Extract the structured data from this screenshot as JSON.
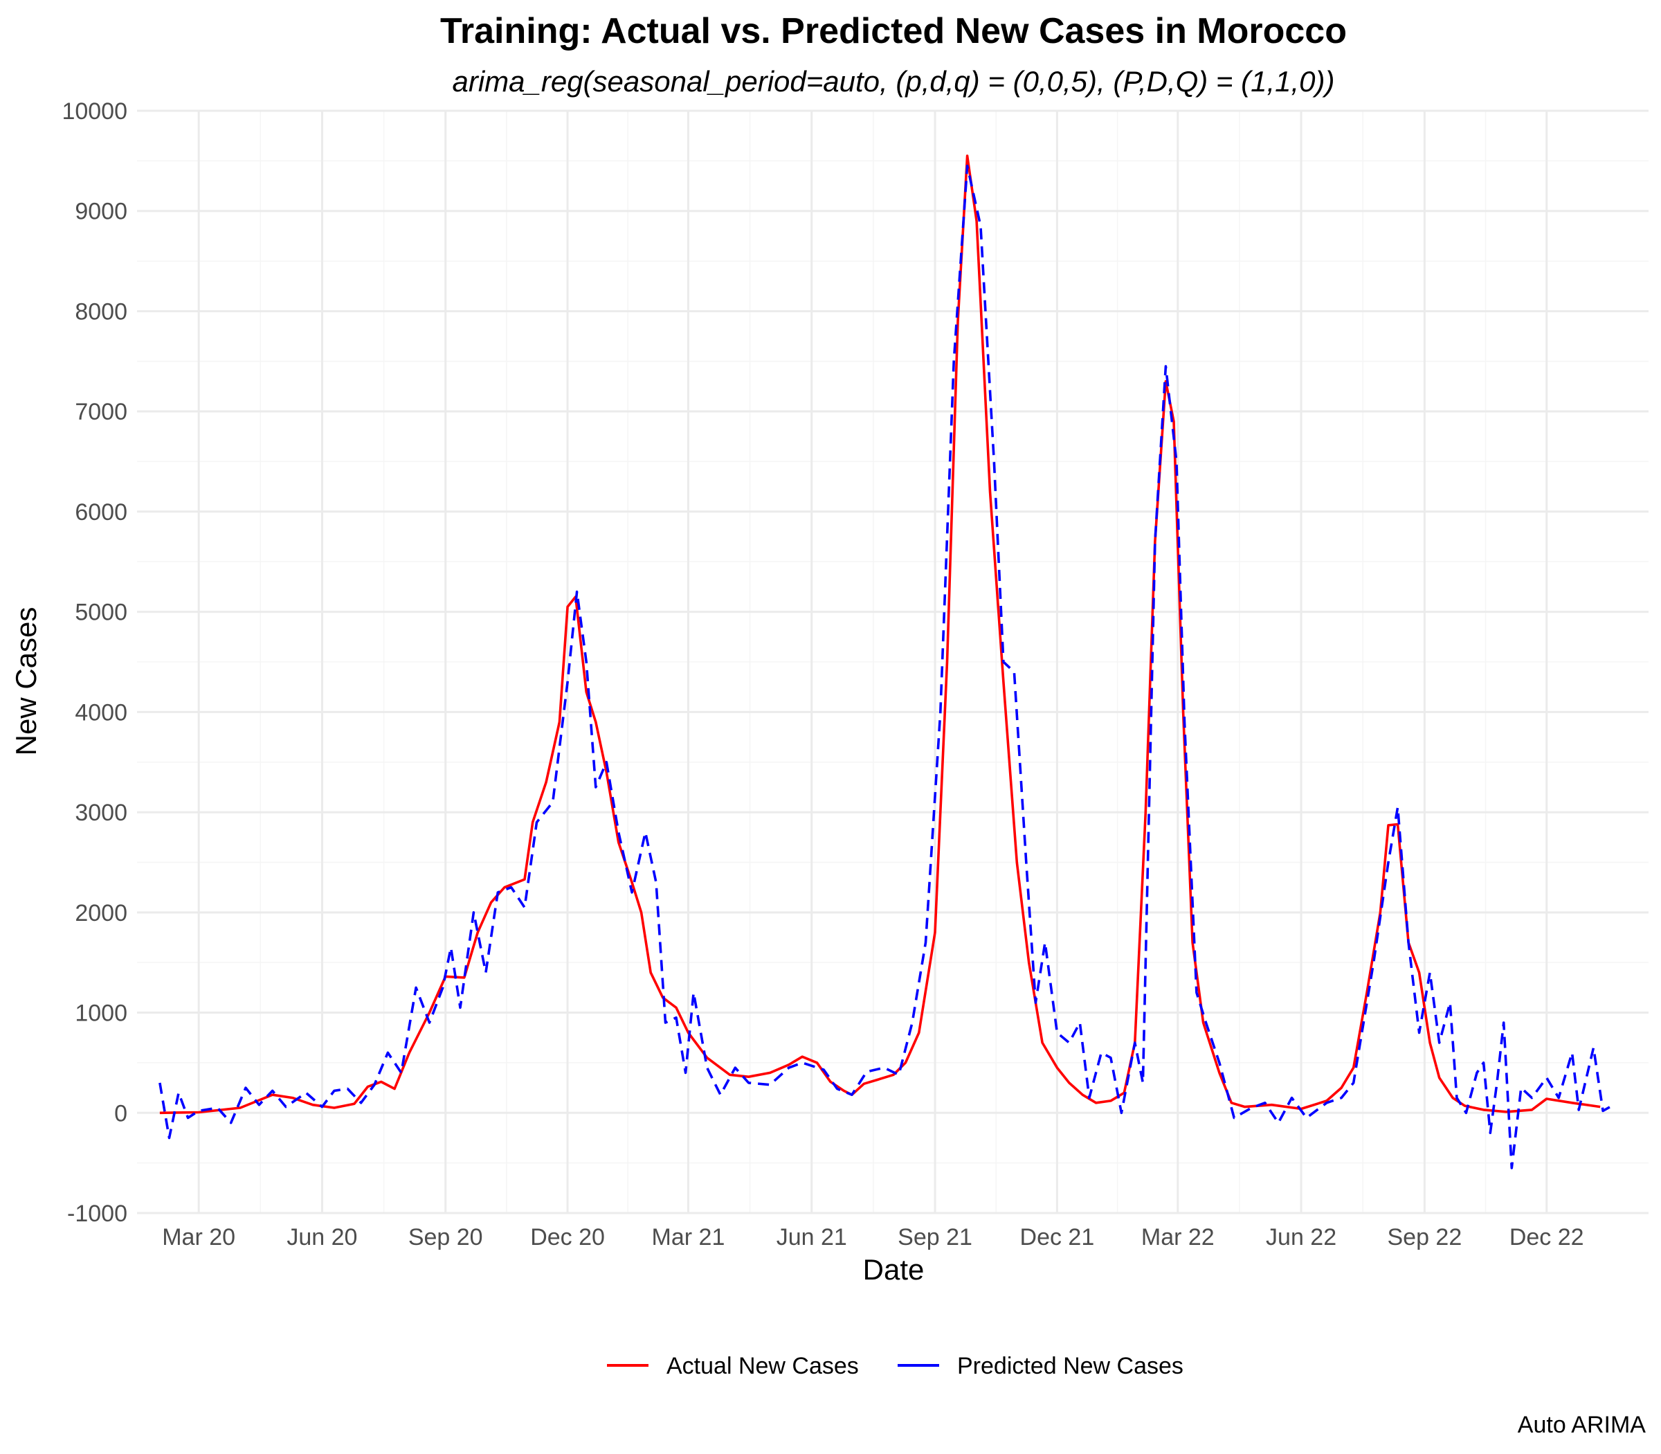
{
  "chart_data": {
    "type": "line",
    "title": "Training: Actual vs. Predicted New Cases in Morocco",
    "subtitle": "arima_reg(seasonal_period=auto, (p,d,q) = (0,0,5), (P,D,Q) = (1,1,0))",
    "xlabel": "Date",
    "ylabel": "New Cases",
    "caption": "Auto ARIMA",
    "x_axis": "date",
    "xlim": [
      "2020-01-15",
      "2023-02-15"
    ],
    "ylim": [
      -1000,
      10000
    ],
    "y_ticks": [
      -1000,
      0,
      1000,
      2000,
      3000,
      4000,
      5000,
      6000,
      7000,
      8000,
      9000,
      10000
    ],
    "y_tick_labels": [
      "-1000",
      "0",
      "1000",
      "2000",
      "3000",
      "4000",
      "5000",
      "6000",
      "7000",
      "8000",
      "9000",
      "10000"
    ],
    "x_ticks": [
      "2020-03-01",
      "2020-06-01",
      "2020-09-01",
      "2020-12-01",
      "2021-03-01",
      "2021-06-01",
      "2021-09-01",
      "2021-12-01",
      "2022-03-01",
      "2022-06-01",
      "2022-09-01",
      "2022-12-01"
    ],
    "x_tick_labels": [
      "Mar 20",
      "Jun 20",
      "Sep 20",
      "Dec 20",
      "Mar 21",
      "Jun 21",
      "Sep 21",
      "Dec 21",
      "Mar 22",
      "Jun 22",
      "Sep 22",
      "Dec 22"
    ],
    "grid": true,
    "legend_position": "bottom",
    "colors": {
      "actual": "#ff0000",
      "predicted": "#0000ff"
    },
    "series": [
      {
        "name": "Actual New Cases",
        "style": "solid",
        "points": [
          [
            "2020-02-01",
            0
          ],
          [
            "2020-03-01",
            5
          ],
          [
            "2020-04-01",
            50
          ],
          [
            "2020-04-25",
            180
          ],
          [
            "2020-05-10",
            150
          ],
          [
            "2020-05-25",
            80
          ],
          [
            "2020-06-10",
            50
          ],
          [
            "2020-06-25",
            90
          ],
          [
            "2020-07-05",
            260
          ],
          [
            "2020-07-15",
            310
          ],
          [
            "2020-07-25",
            240
          ],
          [
            "2020-08-05",
            600
          ],
          [
            "2020-08-20",
            1000
          ],
          [
            "2020-09-01",
            1360
          ],
          [
            "2020-09-15",
            1350
          ],
          [
            "2020-09-25",
            1800
          ],
          [
            "2020-10-05",
            2100
          ],
          [
            "2020-10-15",
            2250
          ],
          [
            "2020-10-30",
            2330
          ],
          [
            "2020-11-05",
            2900
          ],
          [
            "2020-11-15",
            3300
          ],
          [
            "2020-11-25",
            3900
          ],
          [
            "2020-12-01",
            5050
          ],
          [
            "2020-12-07",
            5150
          ],
          [
            "2020-12-15",
            4200
          ],
          [
            "2020-12-22",
            3900
          ],
          [
            "2020-12-30",
            3400
          ],
          [
            "2021-01-08",
            2700
          ],
          [
            "2021-01-18",
            2300
          ],
          [
            "2021-01-25",
            2000
          ],
          [
            "2021-02-01",
            1400
          ],
          [
            "2021-02-10",
            1150
          ],
          [
            "2021-02-20",
            1050
          ],
          [
            "2021-03-01",
            800
          ],
          [
            "2021-03-15",
            550
          ],
          [
            "2021-04-01",
            380
          ],
          [
            "2021-04-15",
            360
          ],
          [
            "2021-05-01",
            400
          ],
          [
            "2021-05-15",
            480
          ],
          [
            "2021-05-25",
            560
          ],
          [
            "2021-06-05",
            500
          ],
          [
            "2021-06-15",
            310
          ],
          [
            "2021-06-25",
            220
          ],
          [
            "2021-07-01",
            180
          ],
          [
            "2021-07-10",
            290
          ],
          [
            "2021-07-20",
            330
          ],
          [
            "2021-08-01",
            380
          ],
          [
            "2021-08-10",
            500
          ],
          [
            "2021-08-20",
            800
          ],
          [
            "2021-09-01",
            1800
          ],
          [
            "2021-09-10",
            4500
          ],
          [
            "2021-09-18",
            7900
          ],
          [
            "2021-09-25",
            9550
          ],
          [
            "2021-10-02",
            8900
          ],
          [
            "2021-10-12",
            6200
          ],
          [
            "2021-10-22",
            4300
          ],
          [
            "2021-11-01",
            2500
          ],
          [
            "2021-11-10",
            1500
          ],
          [
            "2021-11-20",
            700
          ],
          [
            "2021-12-01",
            450
          ],
          [
            "2021-12-10",
            300
          ],
          [
            "2021-12-20",
            180
          ],
          [
            "2021-12-30",
            100
          ],
          [
            "2022-01-10",
            120
          ],
          [
            "2022-01-20",
            200
          ],
          [
            "2022-01-28",
            700
          ],
          [
            "2022-02-05",
            3000
          ],
          [
            "2022-02-12",
            5700
          ],
          [
            "2022-02-20",
            7300
          ],
          [
            "2022-02-26",
            6900
          ],
          [
            "2022-03-05",
            4000
          ],
          [
            "2022-03-12",
            1700
          ],
          [
            "2022-03-20",
            900
          ],
          [
            "2022-04-01",
            400
          ],
          [
            "2022-04-10",
            100
          ],
          [
            "2022-04-20",
            60
          ],
          [
            "2022-05-10",
            80
          ],
          [
            "2022-06-01",
            40
          ],
          [
            "2022-06-20",
            120
          ],
          [
            "2022-07-01",
            250
          ],
          [
            "2022-07-10",
            450
          ],
          [
            "2022-07-20",
            1200
          ],
          [
            "2022-07-30",
            2000
          ],
          [
            "2022-08-05",
            2870
          ],
          [
            "2022-08-12",
            2880
          ],
          [
            "2022-08-20",
            1700
          ],
          [
            "2022-08-28",
            1400
          ],
          [
            "2022-09-05",
            700
          ],
          [
            "2022-09-12",
            350
          ],
          [
            "2022-09-22",
            150
          ],
          [
            "2022-10-01",
            70
          ],
          [
            "2022-10-15",
            30
          ],
          [
            "2022-11-01",
            10
          ],
          [
            "2022-11-20",
            30
          ],
          [
            "2022-12-01",
            140
          ],
          [
            "2022-12-20",
            100
          ],
          [
            "2023-01-10",
            60
          ]
        ]
      },
      {
        "name": "Predicted New Cases",
        "style": "dashed",
        "points": [
          [
            "2020-02-01",
            300
          ],
          [
            "2020-02-08",
            -250
          ],
          [
            "2020-02-15",
            200
          ],
          [
            "2020-02-22",
            -50
          ],
          [
            "2020-03-01",
            20
          ],
          [
            "2020-03-15",
            50
          ],
          [
            "2020-03-25",
            -100
          ],
          [
            "2020-04-05",
            250
          ],
          [
            "2020-04-15",
            80
          ],
          [
            "2020-04-25",
            220
          ],
          [
            "2020-05-05",
            60
          ],
          [
            "2020-05-20",
            200
          ],
          [
            "2020-06-01",
            60
          ],
          [
            "2020-06-10",
            220
          ],
          [
            "2020-06-20",
            240
          ],
          [
            "2020-06-30",
            100
          ],
          [
            "2020-07-10",
            280
          ],
          [
            "2020-07-20",
            600
          ],
          [
            "2020-07-30",
            400
          ],
          [
            "2020-08-10",
            1250
          ],
          [
            "2020-08-20",
            900
          ],
          [
            "2020-08-30",
            1250
          ],
          [
            "2020-09-05",
            1650
          ],
          [
            "2020-09-12",
            1050
          ],
          [
            "2020-09-22",
            2000
          ],
          [
            "2020-10-01",
            1400
          ],
          [
            "2020-10-10",
            2200
          ],
          [
            "2020-10-20",
            2250
          ],
          [
            "2020-10-30",
            2050
          ],
          [
            "2020-11-08",
            2900
          ],
          [
            "2020-11-20",
            3100
          ],
          [
            "2020-12-01",
            4300
          ],
          [
            "2020-12-08",
            5200
          ],
          [
            "2020-12-15",
            4500
          ],
          [
            "2020-12-22",
            3250
          ],
          [
            "2020-12-30",
            3500
          ],
          [
            "2021-01-08",
            2800
          ],
          [
            "2021-01-18",
            2200
          ],
          [
            "2021-01-28",
            2800
          ],
          [
            "2021-02-05",
            2300
          ],
          [
            "2021-02-12",
            900
          ],
          [
            "2021-02-20",
            950
          ],
          [
            "2021-02-27",
            400
          ],
          [
            "2021-03-05",
            1200
          ],
          [
            "2021-03-15",
            450
          ],
          [
            "2021-03-25",
            180
          ],
          [
            "2021-04-05",
            450
          ],
          [
            "2021-04-15",
            300
          ],
          [
            "2021-05-01",
            280
          ],
          [
            "2021-05-15",
            450
          ],
          [
            "2021-05-25",
            500
          ],
          [
            "2021-06-10",
            430
          ],
          [
            "2021-06-20",
            240
          ],
          [
            "2021-07-01",
            180
          ],
          [
            "2021-07-12",
            410
          ],
          [
            "2021-07-25",
            450
          ],
          [
            "2021-08-05",
            380
          ],
          [
            "2021-08-15",
            900
          ],
          [
            "2021-08-25",
            1700
          ],
          [
            "2021-09-05",
            4000
          ],
          [
            "2021-09-15",
            7500
          ],
          [
            "2021-09-25",
            9450
          ],
          [
            "2021-10-05",
            8850
          ],
          [
            "2021-10-15",
            6500
          ],
          [
            "2021-10-22",
            4500
          ],
          [
            "2021-10-30",
            4400
          ],
          [
            "2021-11-08",
            2500
          ],
          [
            "2021-11-15",
            1100
          ],
          [
            "2021-11-22",
            1700
          ],
          [
            "2021-12-01",
            800
          ],
          [
            "2021-12-10",
            700
          ],
          [
            "2021-12-18",
            900
          ],
          [
            "2021-12-25",
            150
          ],
          [
            "2022-01-03",
            600
          ],
          [
            "2022-01-10",
            550
          ],
          [
            "2022-01-18",
            0
          ],
          [
            "2022-01-28",
            700
          ],
          [
            "2022-02-03",
            300
          ],
          [
            "2022-02-12",
            5700
          ],
          [
            "2022-02-20",
            7450
          ],
          [
            "2022-02-28",
            6500
          ],
          [
            "2022-03-06",
            3900
          ],
          [
            "2022-03-15",
            1200
          ],
          [
            "2022-03-22",
            900
          ],
          [
            "2022-04-01",
            500
          ],
          [
            "2022-04-12",
            -50
          ],
          [
            "2022-04-25",
            50
          ],
          [
            "2022-05-05",
            100
          ],
          [
            "2022-05-15",
            -100
          ],
          [
            "2022-05-25",
            150
          ],
          [
            "2022-06-05",
            -50
          ],
          [
            "2022-06-20",
            100
          ],
          [
            "2022-07-01",
            150
          ],
          [
            "2022-07-10",
            300
          ],
          [
            "2022-07-25",
            1500
          ],
          [
            "2022-08-05",
            2500
          ],
          [
            "2022-08-12",
            3050
          ],
          [
            "2022-08-20",
            1700
          ],
          [
            "2022-08-28",
            800
          ],
          [
            "2022-09-05",
            1400
          ],
          [
            "2022-09-12",
            700
          ],
          [
            "2022-09-20",
            1100
          ],
          [
            "2022-09-25",
            150
          ],
          [
            "2022-10-02",
            0
          ],
          [
            "2022-10-10",
            400
          ],
          [
            "2022-10-15",
            500
          ],
          [
            "2022-10-20",
            -200
          ],
          [
            "2022-10-25",
            300
          ],
          [
            "2022-10-30",
            900
          ],
          [
            "2022-11-05",
            -550
          ],
          [
            "2022-11-12",
            250
          ],
          [
            "2022-11-20",
            150
          ],
          [
            "2022-12-01",
            350
          ],
          [
            "2022-12-10",
            150
          ],
          [
            "2022-12-20",
            600
          ],
          [
            "2022-12-25",
            30
          ],
          [
            "2023-01-05",
            650
          ],
          [
            "2023-01-12",
            20
          ],
          [
            "2023-01-20",
            80
          ]
        ]
      }
    ]
  }
}
